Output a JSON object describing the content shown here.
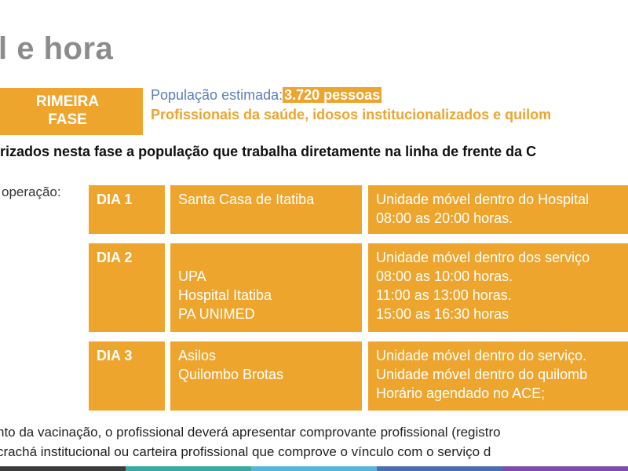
{
  "title": "l e hora",
  "phase": {
    "line1": "RIMEIRA",
    "line2": "FASE"
  },
  "population": {
    "label": "População estimada:",
    "value": "3.720 pessoas"
  },
  "groups": "Profissionais da saúde, idosos institucionalizados e quilom",
  "prioritized": "rizados nesta fase a população que trabalha diretamente na linha de frente da C",
  "operation_label": "operação:",
  "schedule": [
    {
      "day": "DIA 1",
      "places": [
        "Santa Casa de Itatiba"
      ],
      "details": [
        "Unidade móvel dentro do Hospital",
        "08:00 as 20:00 horas."
      ]
    },
    {
      "day": "DIA 2",
      "places": [
        "",
        "UPA",
        "Hospital Itatiba",
        "PA UNIMED"
      ],
      "details": [
        "Unidade móvel dentro dos serviço",
        "08:00 as 10:00 horas.",
        "11:00 as 13:00 horas.",
        "15:00 as 16:30 horas"
      ]
    },
    {
      "day": "DIA 3",
      "places": [
        "Asilos",
        "Quilombo Brotas"
      ],
      "details": [
        "Unidade móvel dentro do serviço.",
        "Unidade móvel dentro do quilomb",
        "Horário agendado no ACE;"
      ]
    }
  ],
  "footer": {
    "line1": "nto da vacinação, o profissional deverá apresentar comprovante profissional (registro",
    "line2": "crachá institucional ou carteira profissional que comprove o vínculo com o serviço d"
  },
  "colors": {
    "accent": "#eda52d",
    "population_text": "#5b7fb7",
    "title_text": "#8c8c8c",
    "bar": [
      "#3c3c3c",
      "#3aa9a0",
      "#5bb5d6",
      "#4b6fa8",
      "#7b4fa3"
    ]
  }
}
